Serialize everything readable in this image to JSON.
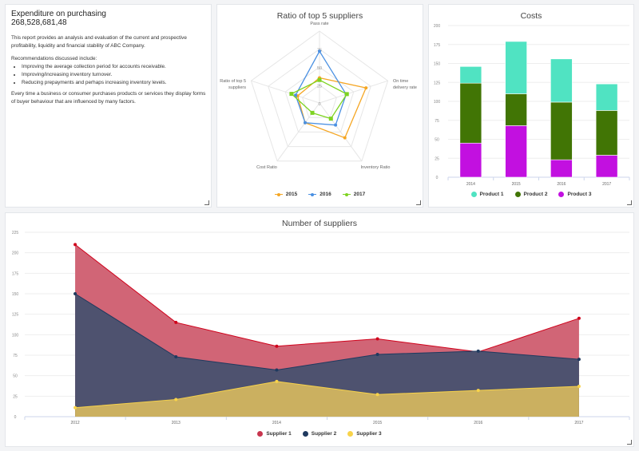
{
  "summary": {
    "title": "Expenditure on purchasing",
    "value": "268,528,681,48",
    "intro": "This report provides an analysis and evaluation of the current and prospective profitability, liquidity and financial stability of ABC Company.",
    "recommendations_heading": "Recommendations discussed include:",
    "recommendations": [
      "Improving the average collection period for accounts receivable.",
      "Improving/increasing inventory turnover.",
      "Reducing prepayments and perhaps increasing inventory levels."
    ],
    "closing": "Every time a business or consumer purchases products or services they display forms of buyer behaviour that are influenced by many factors."
  },
  "chart_data": [
    {
      "type": "radar",
      "title": "Ratio of top 5 suppliers",
      "axes": [
        "Pass rate",
        "On time delivery rate",
        "Inventory Ratio",
        "Cost Ratio",
        "Ratio of top 5 suppliers"
      ],
      "axis_labels": [
        [
          "Pass rate"
        ],
        [
          "On time",
          "delivery rate"
        ],
        [
          "Inventory Ratio"
        ],
        [
          "Cost Ratio"
        ],
        [
          "Ratio of top 5",
          "suppliers"
        ]
      ],
      "ring_ticks": [
        "0",
        "25",
        "50",
        "75"
      ],
      "range": [
        0,
        100
      ],
      "series": [
        {
          "name": "2015",
          "color": "#f5a623",
          "values": [
            35,
            68,
            60,
            34,
            32
          ]
        },
        {
          "name": "2016",
          "color": "#4a90e2",
          "values": [
            72,
            39,
            38,
            34,
            35
          ]
        },
        {
          "name": "2017",
          "color": "#7ed321",
          "values": [
            32,
            40,
            27,
            17,
            41
          ]
        }
      ],
      "legend": "bottom"
    },
    {
      "type": "bar",
      "stacked": true,
      "title": "Costs",
      "categories": [
        "2014",
        "2015",
        "2016",
        "2017"
      ],
      "yticks": [
        "0",
        "25",
        "50",
        "75",
        "100",
        "125",
        "150",
        "175",
        "200"
      ],
      "ylim": [
        0,
        200
      ],
      "series": [
        {
          "name": "Product 3",
          "color": "#c210e0",
          "values": [
            45,
            68,
            23,
            29
          ]
        },
        {
          "name": "Product 2",
          "color": "#417505",
          "values": [
            79,
            42,
            76,
            59
          ]
        },
        {
          "name": "Product 1",
          "color": "#50e3c2",
          "values": [
            22,
            69,
            57,
            35
          ]
        }
      ],
      "legend_order": [
        "Product 1",
        "Product 2",
        "Product 3"
      ],
      "legend": "bottom"
    },
    {
      "type": "area",
      "title": "Number of suppliers",
      "categories": [
        "2012",
        "2013",
        "2014",
        "2015",
        "2016",
        "2017"
      ],
      "yticks": [
        "0",
        "25",
        "50",
        "75",
        "100",
        "125",
        "150",
        "175",
        "200",
        "225"
      ],
      "ylim": [
        0,
        225
      ],
      "series": [
        {
          "name": "Supplier 1",
          "color": "#d0021b",
          "fill": "#d16576",
          "values": [
            210,
            115,
            86,
            95,
            79,
            120
          ]
        },
        {
          "name": "Supplier 2",
          "color": "#1f3a5f",
          "fill": "#4e526f",
          "values": [
            150,
            73,
            57,
            76,
            80,
            70
          ]
        },
        {
          "name": "Supplier 3",
          "color": "#f8d34a",
          "fill": "#cbb060",
          "values": [
            11,
            21,
            43,
            27,
            32,
            37
          ]
        }
      ],
      "legend": "bottom"
    }
  ]
}
